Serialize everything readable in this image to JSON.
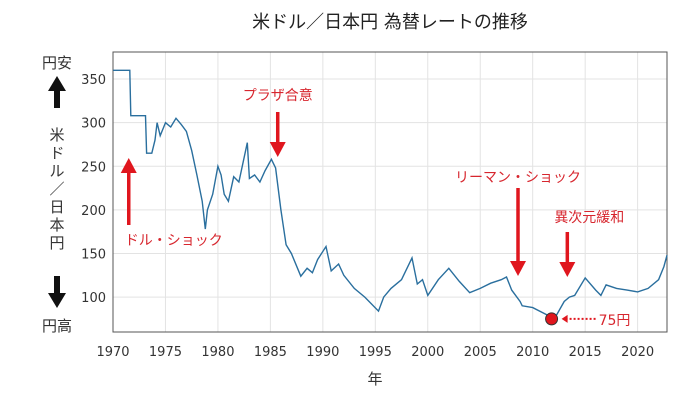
{
  "chart_data": {
    "type": "line",
    "title": "米ドル／日本円 為替レートの推移",
    "xlabel": "年",
    "ylabel": "米ドル／日本円",
    "ylabel_top": "円安",
    "ylabel_bottom": "円高",
    "xlim": [
      1970,
      2022.8
    ],
    "ylim": [
      60,
      381
    ],
    "xticks": [
      1970,
      1975,
      1980,
      1985,
      1990,
      1995,
      2000,
      2005,
      2010,
      2015,
      2020
    ],
    "yticks": [
      100,
      150,
      200,
      250,
      300,
      350
    ],
    "grid": true,
    "line_color": "#2a6f9e",
    "accent_color": "#e0161e",
    "series": [
      {
        "x": [
          1970,
          1971.6,
          1971.7,
          1973.1,
          1973.2,
          1973.7,
          1974,
          1974.2,
          1974.5,
          1975,
          1975.5,
          1976,
          1976.5,
          1977,
          1977.5,
          1978,
          1978.5,
          1978.8,
          1979,
          1979.5,
          1980,
          1980.3,
          1980.6,
          1981,
          1981.5,
          1982,
          1982.8,
          1983,
          1983.5,
          1984,
          1984.5,
          1985.1,
          1985.5,
          1986,
          1986.5,
          1987,
          1987.9,
          1988.5,
          1989,
          1989.5,
          1990.3,
          1990.8,
          1991.5,
          1992,
          1993,
          1994,
          1995.3,
          1995.8,
          1996.5,
          1997.5,
          1998.5,
          1999,
          1999.5,
          2000,
          2001,
          2002,
          2003,
          2004,
          2005,
          2006,
          2007,
          2007.5,
          2008,
          2008.8,
          2009,
          2010,
          2011.8,
          2012.3,
          2013,
          2013.5,
          2014,
          2015,
          2016,
          2016.5,
          2017,
          2018,
          2019,
          2020,
          2021,
          2022,
          2022.5,
          2022.8
        ],
        "y": [
          360,
          360,
          308,
          308,
          265,
          265,
          280,
          300,
          285,
          300,
          295,
          305,
          298,
          290,
          268,
          240,
          210,
          178,
          200,
          218,
          250,
          240,
          218,
          210,
          238,
          232,
          277,
          236,
          240,
          232,
          245,
          258,
          248,
          200,
          160,
          150,
          124,
          133,
          128,
          143,
          158,
          130,
          138,
          125,
          110,
          100,
          84,
          100,
          110,
          120,
          145,
          115,
          120,
          102,
          120,
          133,
          118,
          105,
          110,
          116,
          120,
          123,
          108,
          95,
          90,
          88,
          77,
          80,
          95,
          100,
          102,
          122,
          108,
          102,
          114,
          110,
          108,
          106,
          110,
          120,
          135,
          148
        ]
      }
    ],
    "annotations": [
      {
        "label": "ドル・ショック",
        "year": 1971.5,
        "direction": "up"
      },
      {
        "label": "プラザ合意",
        "year": 1985.7,
        "direction": "down"
      },
      {
        "label": "リーマン・ショック",
        "year": 2008.6,
        "direction": "down"
      },
      {
        "label": "異次元緩和",
        "year": 2013.3,
        "direction": "down"
      }
    ],
    "marker": {
      "year": 2011.8,
      "value": 75,
      "label": "75円"
    }
  }
}
